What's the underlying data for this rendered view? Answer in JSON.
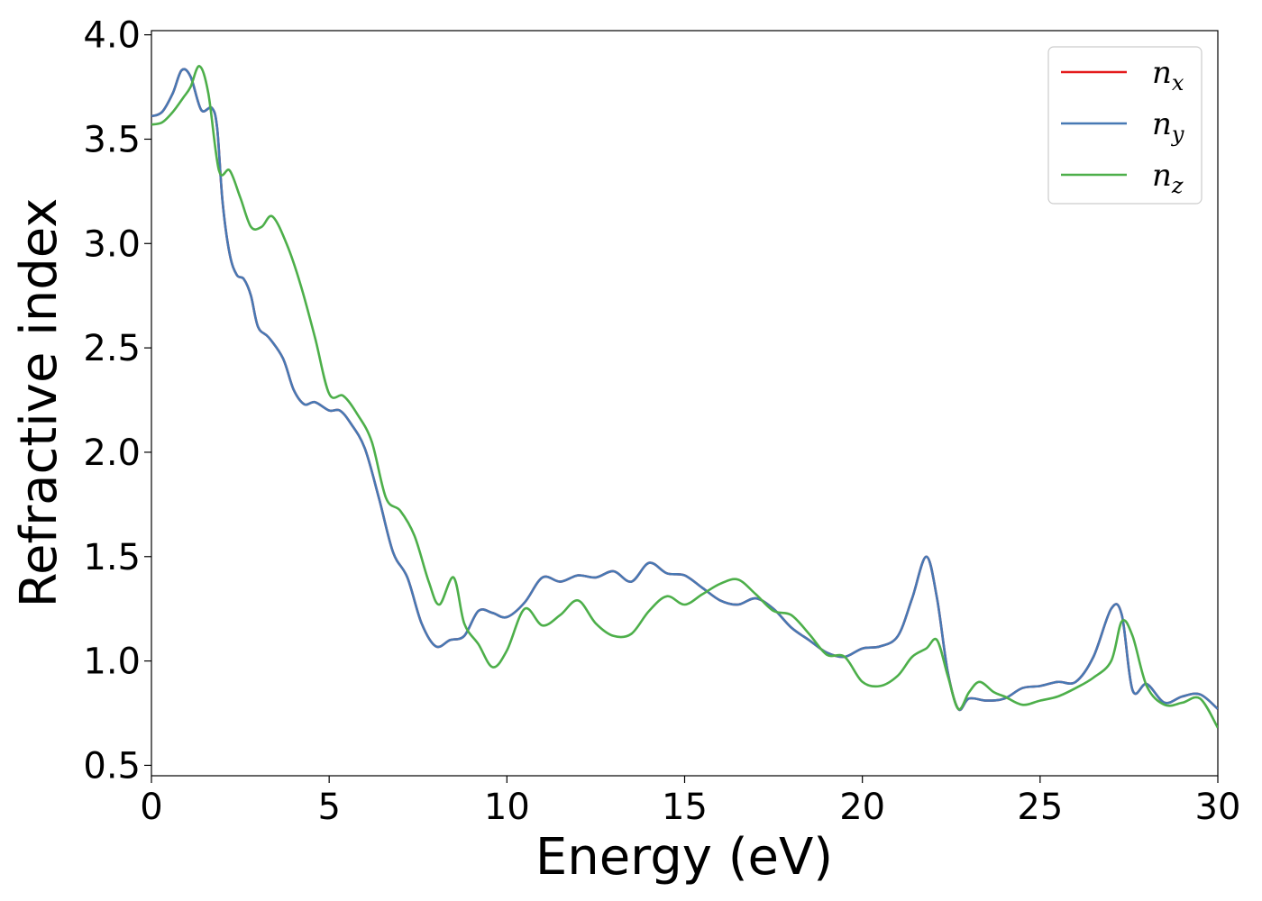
{
  "chart_data": {
    "type": "line",
    "xlabel": "Energy (eV)",
    "ylabel": "Refractive index",
    "xlim": [
      0,
      30
    ],
    "ylim": [
      0.45,
      4.02
    ],
    "xticks": [
      0,
      5,
      10,
      15,
      20,
      25,
      30
    ],
    "xtick_labels": [
      "0",
      "5",
      "10",
      "15",
      "20",
      "25",
      "30"
    ],
    "yticks": [
      0.5,
      1.0,
      1.5,
      2.0,
      2.5,
      3.0,
      3.5,
      4.0
    ],
    "ytick_labels": [
      "0.5",
      "1.0",
      "1.5",
      "2.0",
      "2.5",
      "3.0",
      "3.5",
      "4.0"
    ],
    "grid": false,
    "legend_position": "top-right",
    "series": [
      {
        "name": "n",
        "subscript": "x",
        "color": "#e41a1c",
        "x": [
          0,
          0.3,
          0.6,
          0.85,
          1.1,
          1.4,
          1.7,
          1.85,
          2.0,
          2.2,
          2.4,
          2.6,
          2.8,
          3.0,
          3.3,
          3.7,
          4.0,
          4.3,
          4.6,
          5.0,
          5.3,
          5.6,
          6.0,
          6.4,
          6.8,
          7.2,
          7.6,
          8.0,
          8.4,
          8.8,
          9.2,
          9.6,
          10.0,
          10.5,
          11.0,
          11.5,
          12.0,
          12.5,
          13.0,
          13.5,
          14.0,
          14.5,
          15.0,
          15.5,
          16.0,
          16.5,
          17.0,
          17.5,
          18.0,
          18.5,
          19.0,
          19.5,
          20.0,
          20.5,
          21.0,
          21.4,
          21.8,
          22.1,
          22.4,
          22.7,
          23.0,
          23.5,
          24.0,
          24.5,
          25.0,
          25.5,
          26.0,
          26.5,
          27.0,
          27.3,
          27.6,
          28.0,
          28.5,
          29.0,
          29.5,
          30.0
        ],
        "values": [
          3.61,
          3.63,
          3.72,
          3.83,
          3.8,
          3.64,
          3.65,
          3.55,
          3.2,
          2.95,
          2.85,
          2.83,
          2.75,
          2.6,
          2.55,
          2.45,
          2.3,
          2.23,
          2.24,
          2.2,
          2.2,
          2.14,
          2.02,
          1.78,
          1.52,
          1.4,
          1.18,
          1.07,
          1.1,
          1.12,
          1.24,
          1.23,
          1.21,
          1.28,
          1.4,
          1.38,
          1.41,
          1.4,
          1.43,
          1.38,
          1.47,
          1.42,
          1.41,
          1.35,
          1.29,
          1.27,
          1.3,
          1.25,
          1.16,
          1.1,
          1.04,
          1.02,
          1.06,
          1.07,
          1.12,
          1.3,
          1.5,
          1.3,
          0.95,
          0.77,
          0.82,
          0.81,
          0.82,
          0.87,
          0.88,
          0.9,
          0.9,
          1.02,
          1.25,
          1.22,
          0.86,
          0.89,
          0.8,
          0.83,
          0.84,
          0.77
        ]
      },
      {
        "name": "n",
        "subscript": "y",
        "color": "#4779b4",
        "x": [
          0,
          0.3,
          0.6,
          0.85,
          1.1,
          1.4,
          1.7,
          1.85,
          2.0,
          2.2,
          2.4,
          2.6,
          2.8,
          3.0,
          3.3,
          3.7,
          4.0,
          4.3,
          4.6,
          5.0,
          5.3,
          5.6,
          6.0,
          6.4,
          6.8,
          7.2,
          7.6,
          8.0,
          8.4,
          8.8,
          9.2,
          9.6,
          10.0,
          10.5,
          11.0,
          11.5,
          12.0,
          12.5,
          13.0,
          13.5,
          14.0,
          14.5,
          15.0,
          15.5,
          16.0,
          16.5,
          17.0,
          17.5,
          18.0,
          18.5,
          19.0,
          19.5,
          20.0,
          20.5,
          21.0,
          21.4,
          21.8,
          22.1,
          22.4,
          22.7,
          23.0,
          23.5,
          24.0,
          24.5,
          25.0,
          25.5,
          26.0,
          26.5,
          27.0,
          27.3,
          27.6,
          28.0,
          28.5,
          29.0,
          29.5,
          30.0
        ],
        "values": [
          3.61,
          3.63,
          3.72,
          3.83,
          3.8,
          3.64,
          3.65,
          3.55,
          3.2,
          2.95,
          2.85,
          2.83,
          2.75,
          2.6,
          2.55,
          2.45,
          2.3,
          2.23,
          2.24,
          2.2,
          2.2,
          2.14,
          2.02,
          1.78,
          1.52,
          1.4,
          1.18,
          1.07,
          1.1,
          1.12,
          1.24,
          1.23,
          1.21,
          1.28,
          1.4,
          1.38,
          1.41,
          1.4,
          1.43,
          1.38,
          1.47,
          1.42,
          1.41,
          1.35,
          1.29,
          1.27,
          1.3,
          1.25,
          1.16,
          1.1,
          1.04,
          1.02,
          1.06,
          1.07,
          1.12,
          1.3,
          1.5,
          1.3,
          0.95,
          0.77,
          0.82,
          0.81,
          0.82,
          0.87,
          0.88,
          0.9,
          0.9,
          1.02,
          1.25,
          1.22,
          0.86,
          0.89,
          0.8,
          0.83,
          0.84,
          0.77
        ]
      },
      {
        "name": "n",
        "subscript": "z",
        "color": "#4daf4a",
        "x": [
          0,
          0.3,
          0.6,
          0.9,
          1.1,
          1.35,
          1.6,
          1.9,
          2.2,
          2.5,
          2.8,
          3.1,
          3.4,
          3.8,
          4.2,
          4.6,
          5.0,
          5.4,
          5.8,
          6.2,
          6.6,
          7.0,
          7.4,
          7.8,
          8.1,
          8.5,
          8.8,
          9.2,
          9.6,
          10.0,
          10.5,
          11.0,
          11.5,
          12.0,
          12.5,
          13.0,
          13.5,
          14.0,
          14.5,
          15.0,
          15.5,
          16.0,
          16.5,
          17.0,
          17.5,
          18.0,
          18.5,
          19.0,
          19.5,
          20.0,
          20.5,
          21.0,
          21.4,
          21.8,
          22.1,
          22.4,
          22.7,
          23.0,
          23.3,
          23.7,
          24.0,
          24.5,
          25.0,
          25.5,
          26.0,
          26.5,
          27.0,
          27.3,
          27.6,
          28.0,
          28.5,
          29.0,
          29.5,
          30.0
        ],
        "values": [
          3.57,
          3.58,
          3.63,
          3.7,
          3.75,
          3.85,
          3.72,
          3.35,
          3.35,
          3.22,
          3.08,
          3.08,
          3.13,
          3.0,
          2.8,
          2.55,
          2.28,
          2.27,
          2.18,
          2.05,
          1.78,
          1.72,
          1.6,
          1.38,
          1.27,
          1.4,
          1.18,
          1.08,
          0.97,
          1.05,
          1.25,
          1.17,
          1.22,
          1.29,
          1.18,
          1.12,
          1.13,
          1.24,
          1.31,
          1.27,
          1.32,
          1.37,
          1.39,
          1.32,
          1.24,
          1.22,
          1.13,
          1.03,
          1.02,
          0.9,
          0.88,
          0.93,
          1.02,
          1.06,
          1.1,
          0.93,
          0.77,
          0.85,
          0.9,
          0.85,
          0.83,
          0.79,
          0.81,
          0.83,
          0.87,
          0.92,
          1.0,
          1.19,
          1.12,
          0.88,
          0.79,
          0.8,
          0.82,
          0.68
        ]
      }
    ]
  }
}
